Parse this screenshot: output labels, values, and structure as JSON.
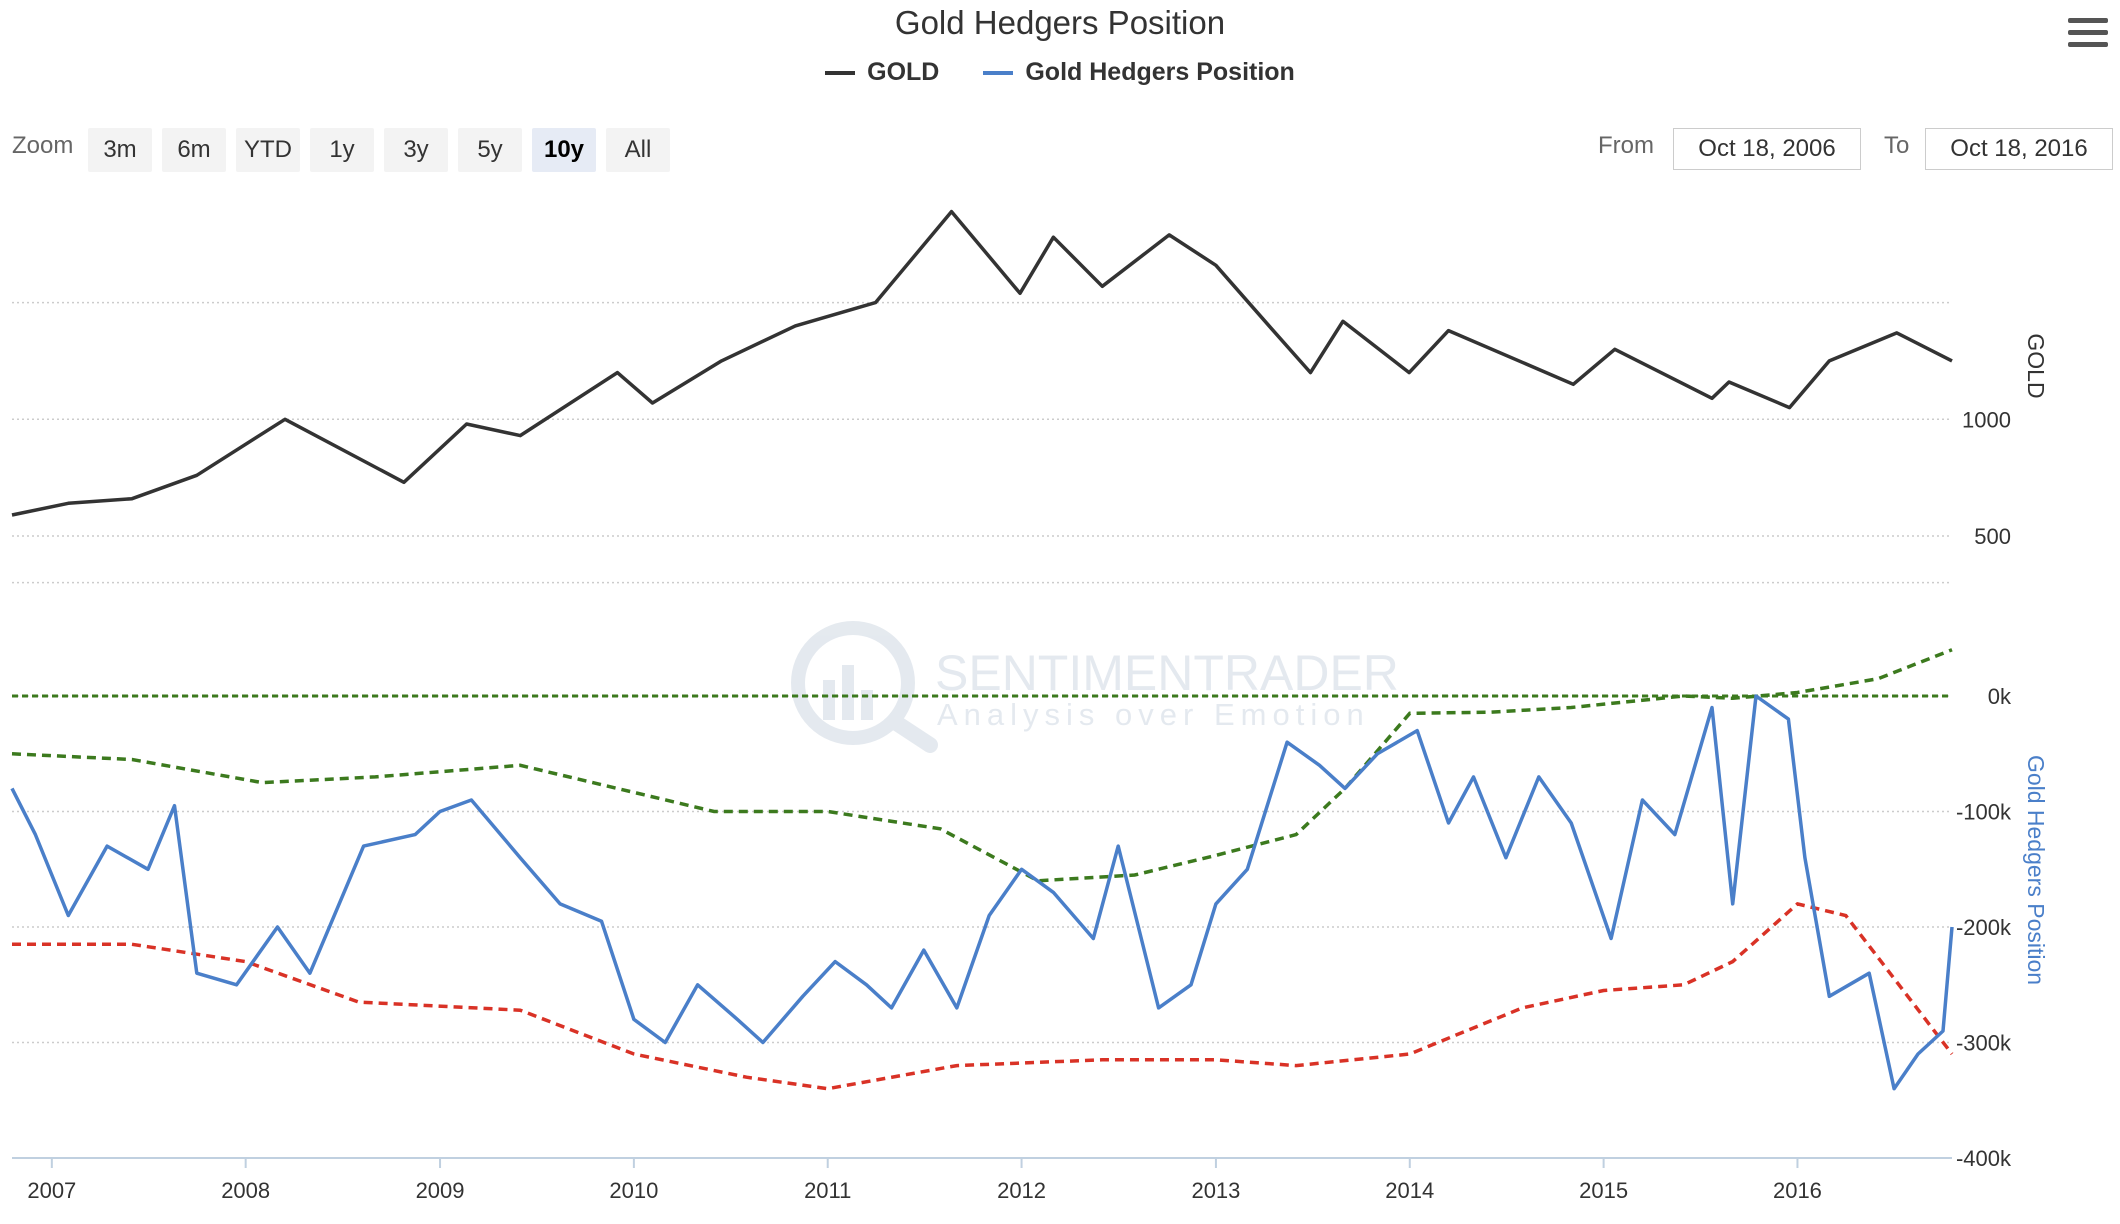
{
  "title": "Gold Hedgers Position",
  "legend": {
    "gold_label": "GOLD",
    "hedgers_label": "Gold Hedgers Position"
  },
  "colors": {
    "gold": "#333333",
    "hedgers": "#4a7fc9",
    "upper_band": "#3c7a1e",
    "lower_band": "#d93226",
    "zero_line": "#3c7a1e"
  },
  "menu_icon": "hamburger-icon",
  "zoom": {
    "label": "Zoom",
    "buttons": [
      "3m",
      "6m",
      "YTD",
      "1y",
      "3y",
      "5y",
      "10y",
      "All"
    ],
    "active": "10y"
  },
  "range": {
    "from_label": "From",
    "from_value": "Oct 18, 2006",
    "to_label": "To",
    "to_value": "Oct 18, 2016"
  },
  "watermark": {
    "line1": "SENTIMENTRADER",
    "line2": "Analysis over Emotion"
  },
  "chart_data": [
    {
      "type": "line",
      "name": "GOLD",
      "y_axis_title": "GOLD",
      "y_ticks": [
        500,
        1000
      ],
      "ylim": [
        500,
        1950
      ],
      "x_dates": [
        "2006-10-18",
        "2007-02-01",
        "2007-06-01",
        "2007-10-01",
        "2008-03-15",
        "2008-10-25",
        "2009-02-20",
        "2009-06-01",
        "2009-12-01",
        "2010-02-05",
        "2010-06-15",
        "2010-11-01",
        "2011-04-01",
        "2011-08-22",
        "2011-12-29",
        "2012-03-01",
        "2012-06-01",
        "2012-10-05",
        "2013-01-01",
        "2013-04-15",
        "2013-06-28",
        "2013-08-28",
        "2013-12-31",
        "2014-03-15",
        "2014-11-05",
        "2015-01-22",
        "2015-07-24",
        "2015-08-25",
        "2015-12-17",
        "2016-03-01",
        "2016-07-06",
        "2016-10-18"
      ],
      "values": [
        590,
        640,
        660,
        760,
        1000,
        730,
        980,
        930,
        1200,
        1070,
        1250,
        1400,
        1500,
        1890,
        1540,
        1780,
        1570,
        1790,
        1660,
        1390,
        1200,
        1420,
        1200,
        1380,
        1150,
        1300,
        1090,
        1160,
        1050,
        1250,
        1370,
        1250
      ]
    },
    {
      "type": "line",
      "name": "Gold Hedgers Position",
      "y_axis_title": "Gold Hedgers Position",
      "y_ticks": [
        "0k",
        "-100k",
        "-200k",
        "-300k",
        "-400k"
      ],
      "ylim": [
        -400000,
        50000
      ],
      "x_axis_labels": [
        "2007",
        "2008",
        "2009",
        "2010",
        "2011",
        "2012",
        "2013",
        "2014",
        "2015",
        "2016"
      ],
      "x_dates": [
        "2006-10-18",
        "2006-12-01",
        "2007-02-01",
        "2007-04-15",
        "2007-07-01",
        "2007-08-20",
        "2007-10-01",
        "2007-12-15",
        "2008-03-01",
        "2008-05-01",
        "2008-08-10",
        "2008-11-15",
        "2009-01-01",
        "2009-03-01",
        "2009-06-01",
        "2009-08-15",
        "2009-11-01",
        "2010-01-01",
        "2010-03-01",
        "2010-05-01",
        "2010-07-15",
        "2010-09-01",
        "2010-11-15",
        "2011-01-15",
        "2011-03-15",
        "2011-05-01",
        "2011-07-01",
        "2011-09-01",
        "2011-11-01",
        "2012-01-01",
        "2012-03-01",
        "2012-05-15",
        "2012-07-01",
        "2012-09-15",
        "2012-11-15",
        "2013-01-01",
        "2013-03-01",
        "2013-05-15",
        "2013-07-15",
        "2013-09-01",
        "2013-11-01",
        "2014-01-15",
        "2014-03-15",
        "2014-05-01",
        "2014-07-01",
        "2014-09-01",
        "2014-11-01",
        "2015-01-15",
        "2015-03-15",
        "2015-05-15",
        "2015-07-24",
        "2015-09-01",
        "2015-10-15",
        "2015-12-15",
        "2016-01-15",
        "2016-03-01",
        "2016-05-15",
        "2016-07-01",
        "2016-08-15",
        "2016-10-01",
        "2016-10-18"
      ],
      "values": [
        -80000,
        -120000,
        -190000,
        -130000,
        -150000,
        -95000,
        -240000,
        -250000,
        -200000,
        -240000,
        -130000,
        -120000,
        -100000,
        -90000,
        -140000,
        -180000,
        -195000,
        -280000,
        -300000,
        -250000,
        -280000,
        -300000,
        -260000,
        -230000,
        -250000,
        -270000,
        -220000,
        -270000,
        -190000,
        -150000,
        -170000,
        -210000,
        -130000,
        -270000,
        -250000,
        -180000,
        -150000,
        -40000,
        -60000,
        -80000,
        -50000,
        -30000,
        -110000,
        -70000,
        -140000,
        -70000,
        -110000,
        -210000,
        -90000,
        -120000,
        -10000,
        -180000,
        0,
        -20000,
        -140000,
        -260000,
        -240000,
        -340000,
        -310000,
        -290000,
        -200000
      ],
      "upper_band": {
        "x_dates": [
          "2006-10-18",
          "2007-06-01",
          "2008-02-01",
          "2008-09-01",
          "2009-06-01",
          "2010-06-01",
          "2011-01-01",
          "2011-08-01",
          "2012-02-01",
          "2012-08-01",
          "2013-01-01",
          "2013-06-01",
          "2013-09-01",
          "2014-01-01",
          "2014-06-01",
          "2014-11-01",
          "2015-06-01",
          "2015-09-01",
          "2016-01-01",
          "2016-06-01",
          "2016-10-18"
        ],
        "values": [
          -50000,
          -55000,
          -75000,
          -70000,
          -60000,
          -100000,
          -100000,
          -115000,
          -160000,
          -155000,
          -138000,
          -120000,
          -80000,
          -15000,
          -14000,
          -10000,
          0,
          -2000,
          3000,
          15000,
          40000
        ]
      },
      "lower_band": {
        "x_dates": [
          "2006-10-18",
          "2007-06-01",
          "2008-01-01",
          "2008-08-01",
          "2009-06-01",
          "2010-01-01",
          "2010-08-01",
          "2011-01-01",
          "2011-09-01",
          "2012-06-01",
          "2013-01-01",
          "2013-06-01",
          "2014-01-01",
          "2014-08-01",
          "2015-01-01",
          "2015-06-01",
          "2015-09-01",
          "2016-01-01",
          "2016-04-01",
          "2016-10-18"
        ],
        "values": [
          -215000,
          -215000,
          -230000,
          -265000,
          -272000,
          -310000,
          -330000,
          -340000,
          -320000,
          -315000,
          -315000,
          -320000,
          -310000,
          -270000,
          -255000,
          -250000,
          -230000,
          -180000,
          -190000,
          -310000
        ]
      },
      "zero_line": 0
    }
  ]
}
